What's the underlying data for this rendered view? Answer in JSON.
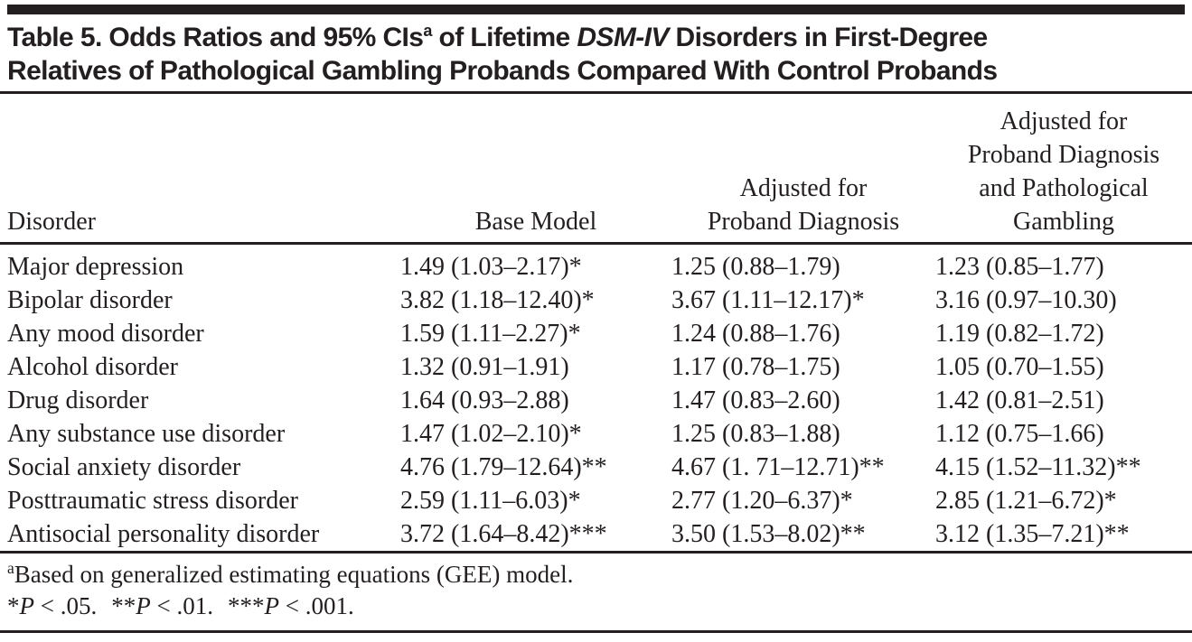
{
  "table": {
    "title": {
      "part1": "Table 5. Odds Ratios and 95% CIs",
      "superscript": "a",
      "part2": " of Lifetime ",
      "italic_term": "DSM-IV",
      "part3": " Disorders in First-Degree",
      "line2": "Relatives of Pathological Gambling Probands Compared With Control Probands"
    },
    "columns": {
      "disorder": "Disorder",
      "base_model": "Base Model",
      "adjusted_proband": "Adjusted for\nProband Diagnosis",
      "adjusted_proband_pg": "Adjusted for\nProband Diagnosis\nand Pathological\nGambling"
    },
    "rows": [
      {
        "disorder": "Major depression",
        "base_model": "1.49 (1.03–2.17)*",
        "adjusted_proband": "1.25 (0.88–1.79)",
        "adjusted_proband_pg": "1.23 (0.85–1.77)"
      },
      {
        "disorder": "Bipolar disorder",
        "base_model": "3.82 (1.18–12.40)*",
        "adjusted_proband": "3.67 (1.11–12.17)*",
        "adjusted_proband_pg": "3.16 (0.97–10.30)"
      },
      {
        "disorder": "Any mood disorder",
        "base_model": "1.59 (1.11–2.27)*",
        "adjusted_proband": "1.24 (0.88–1.76)",
        "adjusted_proband_pg": "1.19 (0.82–1.72)"
      },
      {
        "disorder": "Alcohol disorder",
        "base_model": "1.32 (0.91–1.91)",
        "adjusted_proband": "1.17 (0.78–1.75)",
        "adjusted_proband_pg": "1.05 (0.70–1.55)"
      },
      {
        "disorder": "Drug disorder",
        "base_model": "1.64 (0.93–2.88)",
        "adjusted_proband": "1.47 (0.83–2.60)",
        "adjusted_proband_pg": "1.42 (0.81–2.51)"
      },
      {
        "disorder": "Any substance use disorder",
        "base_model": "1.47 (1.02–2.10)*",
        "adjusted_proband": "1.25 (0.83–1.88)",
        "adjusted_proband_pg": "1.12 (0.75–1.66)"
      },
      {
        "disorder": "Social anxiety disorder",
        "base_model": "4.76 (1.79–12.64)**",
        "adjusted_proband": "4.67 (1. 71–12.71)**",
        "adjusted_proband_pg": "4.15 (1.52–11.32)**"
      },
      {
        "disorder": "Posttraumatic stress disorder",
        "base_model": "2.59 (1.11–6.03)*",
        "adjusted_proband": "2.77 (1.20–6.37)*",
        "adjusted_proband_pg": "2.85 (1.21–6.72)*"
      },
      {
        "disorder": "Antisocial personality disorder",
        "base_model": "3.72 (1.64–8.42)***",
        "adjusted_proband": "3.50 (1.53–8.02)**",
        "adjusted_proband_pg": "3.12 (1.35–7.21)**"
      }
    ],
    "footnotes": {
      "gee": {
        "superscript": "a",
        "text": "Based on generalized estimating equations (GEE) model."
      },
      "significance": [
        {
          "stars": "*",
          "p": "P",
          "rest": " < .05."
        },
        {
          "stars": "**",
          "p": "P",
          "rest": " < .01."
        },
        {
          "stars": "***",
          "p": "P",
          "rest": " < .001."
        }
      ]
    },
    "colors": {
      "text": "#231f20",
      "rule": "#231f20",
      "background": "#ffffff"
    }
  }
}
